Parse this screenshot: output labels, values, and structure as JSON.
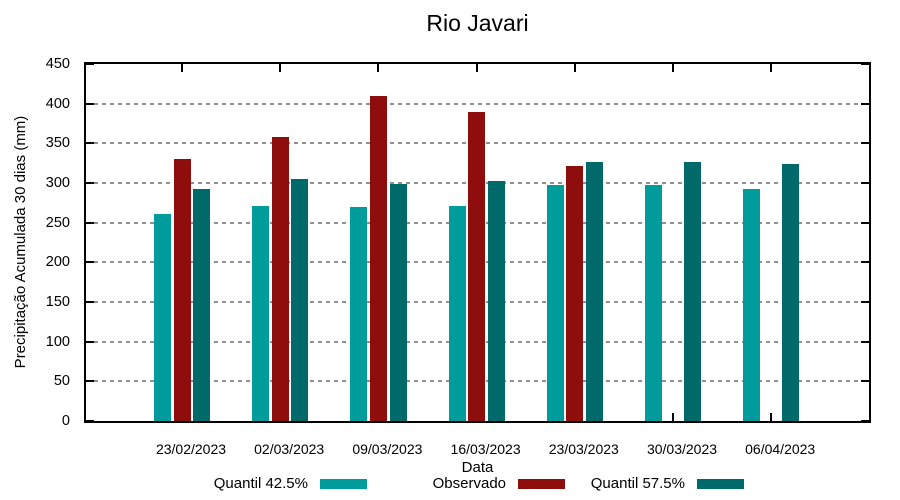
{
  "chart_data": {
    "type": "bar",
    "title": "Rio Javari",
    "xlabel": "Data",
    "ylabel": "Precipitação Acumulada 30 dias (mm)",
    "ylim": [
      0,
      450
    ],
    "yticks": [
      0,
      50,
      100,
      150,
      200,
      250,
      300,
      350,
      400,
      450
    ],
    "grid": "horizontal-dashed",
    "grid_color": "#909090",
    "legend_position": "bottom",
    "background_color": "#ffffff",
    "axis_color": "#000000",
    "categories": [
      "23/02/2023",
      "02/03/2023",
      "09/03/2023",
      "16/03/2023",
      "23/03/2023",
      "30/03/2023",
      "06/04/2023"
    ],
    "series": [
      {
        "name": "Quantil 42.5%",
        "color": "#009C9C",
        "values": [
          261,
          271,
          270,
          271,
          297,
          297,
          293
        ]
      },
      {
        "name": "Observado",
        "color": "#8E0E0E",
        "values": [
          330,
          358,
          410,
          390,
          322,
          null,
          null
        ]
      },
      {
        "name": "Quantil 57.5%",
        "color": "#006969",
        "values": [
          292,
          305,
          299,
          303,
          327,
          327,
          324
        ]
      }
    ]
  }
}
